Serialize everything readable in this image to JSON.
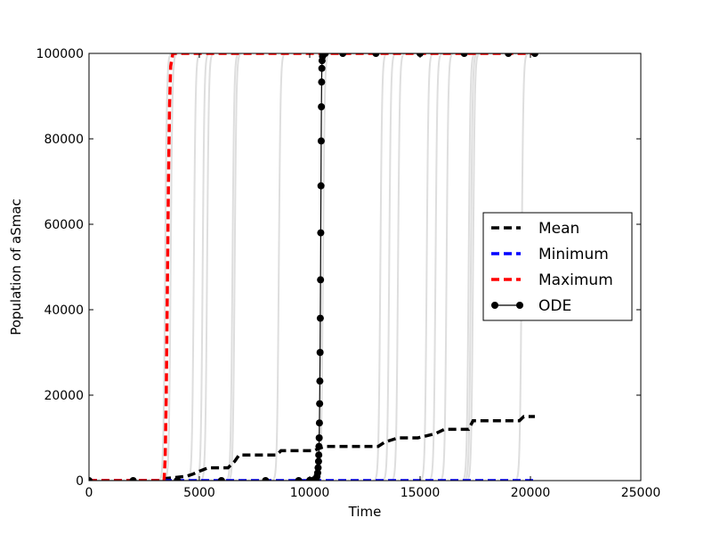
{
  "chart_data": {
    "type": "line",
    "title": "",
    "xlabel": "Time",
    "ylabel": "Population of aSmac",
    "xlim": [
      0,
      25000
    ],
    "ylim": [
      0,
      100000
    ],
    "x_ticks": [
      0,
      5000,
      10000,
      15000,
      20000,
      25000
    ],
    "y_ticks": [
      0,
      20000,
      40000,
      60000,
      80000,
      100000
    ],
    "x_tick_labels": [
      "0",
      "5000",
      "10000",
      "15000",
      "20000",
      "25000"
    ],
    "y_tick_labels": [
      "0",
      "20000",
      "40000",
      "60000",
      "80000",
      "100000"
    ],
    "grid": false,
    "legend_position": "right",
    "legend": [
      "Mean",
      "Minimum",
      "Maximum",
      "ODE"
    ],
    "series": [
      {
        "name": "Mean",
        "color": "#000000",
        "style": "dashed",
        "x": [
          0,
          3400,
          3500,
          4400,
          4700,
          5000,
          5400,
          6300,
          6600,
          6800,
          8500,
          8700,
          10200,
          10400,
          10700,
          13100,
          13400,
          14000,
          14900,
          15700,
          16100,
          17200,
          17400,
          19500,
          19700,
          20200
        ],
        "y": [
          0,
          0,
          500,
          1000,
          1500,
          2200,
          3000,
          3000,
          4500,
          6000,
          6000,
          7000,
          7000,
          7500,
          8000,
          8000,
          9000,
          10000,
          10000,
          11000,
          12000,
          12000,
          14000,
          14000,
          15000,
          15000
        ]
      },
      {
        "name": "Minimum",
        "color": "#0000ff",
        "style": "dashed",
        "x": [
          0,
          10000,
          10400,
          20200
        ],
        "y": [
          0,
          0,
          0,
          0
        ]
      },
      {
        "name": "Maximum",
        "color": "#ff0000",
        "style": "dashed",
        "x": [
          0,
          3400,
          3450,
          3500,
          3550,
          3600,
          3650,
          3700,
          3800,
          20200
        ],
        "y": [
          0,
          0,
          5000,
          20000,
          45000,
          70000,
          88000,
          97000,
          100000,
          100000
        ]
      },
      {
        "name": "ODE",
        "color": "#000000",
        "style": "solid-marker",
        "x": [
          0,
          2000,
          4000,
          6000,
          8000,
          9500,
          10000,
          10200,
          10300,
          10330,
          10360,
          10380,
          10400,
          10410,
          10420,
          10430,
          10440,
          10450,
          10460,
          10470,
          10480,
          10490,
          10500,
          10510,
          10520,
          10530,
          10540,
          10550,
          10560,
          10580,
          10600,
          10650,
          10700,
          11500,
          13000,
          15000,
          17000,
          19000,
          20200
        ],
        "y": [
          0,
          0,
          0,
          0,
          0,
          0,
          50,
          200,
          500,
          1000,
          1800,
          3000,
          4500,
          6000,
          8000,
          10000,
          13500,
          18000,
          23300,
          30000,
          38000,
          47000,
          58000,
          69000,
          79500,
          87500,
          93300,
          96500,
          98300,
          99300,
          99700,
          99900,
          100000,
          100000,
          100000,
          100000,
          100000,
          100000,
          100000
        ]
      }
    ],
    "background_trajectories": {
      "color": "#c8c8c8",
      "switch_times": [
        3450,
        3700,
        4750,
        5150,
        5350,
        6500,
        6600,
        8600,
        10600,
        13200,
        13600,
        14000,
        15300,
        15700,
        16200,
        17200,
        17300,
        17400,
        19600
      ]
    }
  }
}
